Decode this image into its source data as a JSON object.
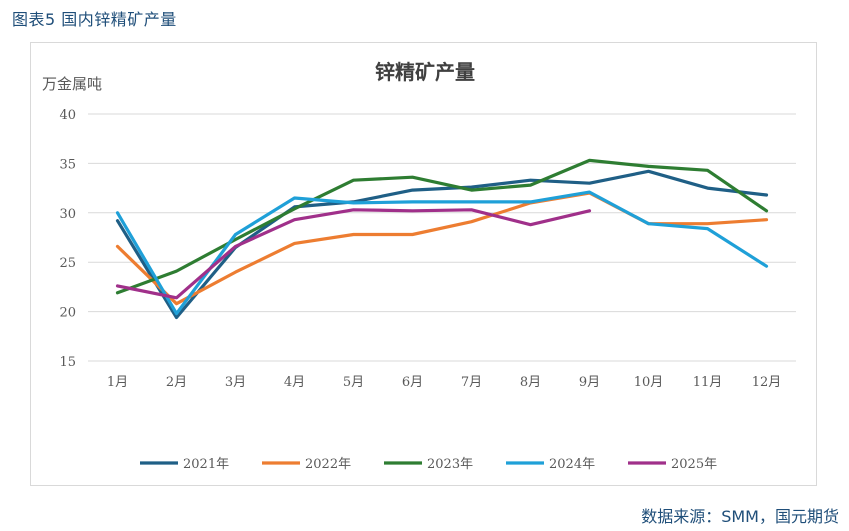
{
  "caption": "图表5 国内锌精矿产量",
  "source": "数据来源：SMM，国元期货",
  "chart_data": {
    "type": "line",
    "title": "锌精矿产量",
    "ylabel": "万金属吨",
    "xlabel": "",
    "ylim": [
      15,
      40
    ],
    "yticks": [
      15,
      20,
      25,
      30,
      35,
      40
    ],
    "grid": true,
    "legend_position": "bottom",
    "categories": [
      "1月",
      "2月",
      "3月",
      "4月",
      "5月",
      "6月",
      "7月",
      "8月",
      "9月",
      "10月",
      "11月",
      "12月"
    ],
    "series": [
      {
        "name": "2021年",
        "color": "#1f5f86",
        "values": [
          29.2,
          19.4,
          26.5,
          30.6,
          31.1,
          32.3,
          32.6,
          33.3,
          33.0,
          34.2,
          32.5,
          31.8
        ]
      },
      {
        "name": "2022年",
        "color": "#ed7d31",
        "values": [
          26.6,
          20.8,
          24.0,
          26.9,
          27.8,
          27.8,
          29.1,
          31.0,
          32.0,
          28.9,
          28.9,
          29.3
        ]
      },
      {
        "name": "2023年",
        "color": "#2e7d32",
        "values": [
          21.9,
          24.1,
          27.3,
          30.4,
          33.3,
          33.6,
          32.3,
          32.8,
          35.3,
          34.7,
          34.3,
          30.2
        ]
      },
      {
        "name": "2024年",
        "color": "#1fa0d8",
        "values": [
          30.0,
          19.8,
          27.8,
          31.5,
          31.0,
          31.1,
          31.1,
          31.1,
          32.1,
          28.9,
          28.4,
          24.6
        ]
      },
      {
        "name": "2025年",
        "color": "#a0308a",
        "values": [
          22.6,
          21.4,
          26.6,
          29.3,
          30.3,
          30.2,
          30.3,
          28.8,
          30.2,
          null,
          null,
          null
        ]
      }
    ]
  }
}
